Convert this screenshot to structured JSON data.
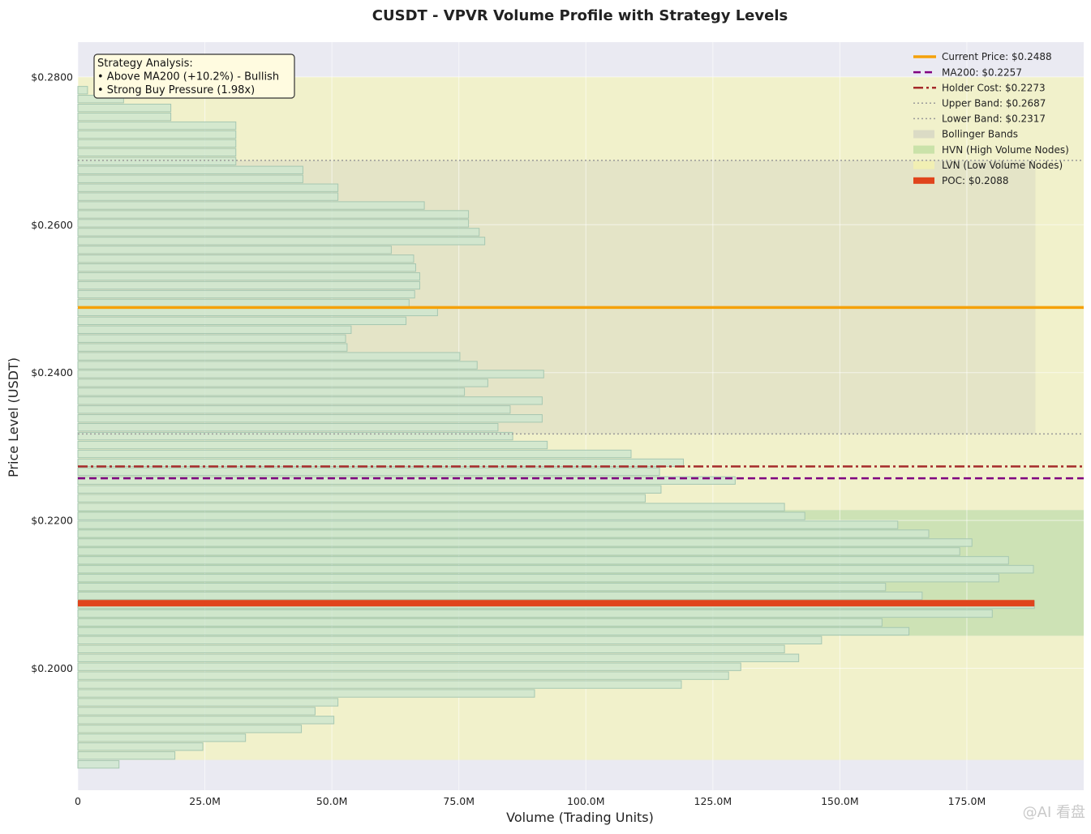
{
  "chart_data": {
    "type": "bar",
    "orientation": "horizontal",
    "title": "CUSDT - VPVR Volume Profile with Strategy Levels",
    "xlabel": "Volume (Trading Units)",
    "ylabel": "Price Level (USDT)",
    "xlim": [
      0,
      198000000
    ],
    "ylim": [
      0.1835,
      0.2847
    ],
    "x_ticks": [
      {
        "value": 0,
        "label": "0"
      },
      {
        "value": 25000000,
        "label": "25.0M"
      },
      {
        "value": 50000000,
        "label": "50.0M"
      },
      {
        "value": 75000000,
        "label": "75.0M"
      },
      {
        "value": 100000000,
        "label": "100.0M"
      },
      {
        "value": 125000000,
        "label": "125.0M"
      },
      {
        "value": 150000000,
        "label": "150.0M"
      },
      {
        "value": 175000000,
        "label": "175.0M"
      }
    ],
    "y_ticks": [
      {
        "value": 0.28,
        "label": "$0.2800"
      },
      {
        "value": 0.26,
        "label": "$0.2600"
      },
      {
        "value": 0.24,
        "label": "$0.2400"
      },
      {
        "value": 0.22,
        "label": "$0.2200"
      },
      {
        "value": 0.2,
        "label": "$0.2000"
      }
    ],
    "grid": true,
    "legend_position": "top-right",
    "bin_height": 0.0012,
    "bins": [
      {
        "price": 0.2794,
        "volume": 0
      },
      {
        "price": 0.2782,
        "volume": 1900000
      },
      {
        "price": 0.277,
        "volume": 9000000
      },
      {
        "price": 0.2758,
        "volume": 18300000
      },
      {
        "price": 0.2746,
        "volume": 18300000
      },
      {
        "price": 0.2734,
        "volume": 31100000
      },
      {
        "price": 0.2722,
        "volume": 31100000
      },
      {
        "price": 0.271,
        "volume": 31100000
      },
      {
        "price": 0.2698,
        "volume": 31100000
      },
      {
        "price": 0.2686,
        "volume": 31100000
      },
      {
        "price": 0.2674,
        "volume": 44300000
      },
      {
        "price": 0.2662,
        "volume": 44300000
      },
      {
        "price": 0.265,
        "volume": 51200000
      },
      {
        "price": 0.2638,
        "volume": 51200000
      },
      {
        "price": 0.2626,
        "volume": 68200000
      },
      {
        "price": 0.2614,
        "volume": 76900000
      },
      {
        "price": 0.2602,
        "volume": 76900000
      },
      {
        "price": 0.259,
        "volume": 79000000
      },
      {
        "price": 0.2578,
        "volume": 80100000
      },
      {
        "price": 0.2566,
        "volume": 61700000
      },
      {
        "price": 0.2554,
        "volume": 66100000
      },
      {
        "price": 0.2542,
        "volume": 66500000
      },
      {
        "price": 0.253,
        "volume": 67300000
      },
      {
        "price": 0.2518,
        "volume": 67300000
      },
      {
        "price": 0.2506,
        "volume": 66300000
      },
      {
        "price": 0.2494,
        "volume": 65200000
      },
      {
        "price": 0.2482,
        "volume": 70800000
      },
      {
        "price": 0.247,
        "volume": 64600000
      },
      {
        "price": 0.2458,
        "volume": 53800000
      },
      {
        "price": 0.2446,
        "volume": 52700000
      },
      {
        "price": 0.2434,
        "volume": 53000000
      },
      {
        "price": 0.2422,
        "volume": 75200000
      },
      {
        "price": 0.241,
        "volume": 78600000
      },
      {
        "price": 0.2398,
        "volume": 91700000
      },
      {
        "price": 0.2386,
        "volume": 80700000
      },
      {
        "price": 0.2374,
        "volume": 76100000
      },
      {
        "price": 0.2362,
        "volume": 91400000
      },
      {
        "price": 0.235,
        "volume": 85100000
      },
      {
        "price": 0.2338,
        "volume": 91400000
      },
      {
        "price": 0.2326,
        "volume": 82700000
      },
      {
        "price": 0.2314,
        "volume": 85600000
      },
      {
        "price": 0.2302,
        "volume": 92400000
      },
      {
        "price": 0.229,
        "volume": 108900000
      },
      {
        "price": 0.2278,
        "volume": 119200000
      },
      {
        "price": 0.2266,
        "volume": 114500000
      },
      {
        "price": 0.2254,
        "volume": 129400000
      },
      {
        "price": 0.2242,
        "volume": 114800000
      },
      {
        "price": 0.223,
        "volume": 111700000
      },
      {
        "price": 0.2218,
        "volume": 139100000
      },
      {
        "price": 0.2206,
        "volume": 143100000
      },
      {
        "price": 0.2194,
        "volume": 161400000
      },
      {
        "price": 0.2182,
        "volume": 167500000
      },
      {
        "price": 0.217,
        "volume": 176000000
      },
      {
        "price": 0.2158,
        "volume": 173600000
      },
      {
        "price": 0.2146,
        "volume": 183200000
      },
      {
        "price": 0.2134,
        "volume": 188100000
      },
      {
        "price": 0.2122,
        "volume": 181300000
      },
      {
        "price": 0.211,
        "volume": 159000000
      },
      {
        "price": 0.2098,
        "volume": 166200000
      },
      {
        "price": 0.2086,
        "volume": 188300000
      },
      {
        "price": 0.2074,
        "volume": 180000000
      },
      {
        "price": 0.2062,
        "volume": 158300000
      },
      {
        "price": 0.205,
        "volume": 163600000
      },
      {
        "price": 0.2038,
        "volume": 146400000
      },
      {
        "price": 0.2026,
        "volume": 139100000
      },
      {
        "price": 0.2014,
        "volume": 141900000
      },
      {
        "price": 0.2002,
        "volume": 130500000
      },
      {
        "price": 0.199,
        "volume": 128100000
      },
      {
        "price": 0.1978,
        "volume": 118800000
      },
      {
        "price": 0.1966,
        "volume": 89900000
      },
      {
        "price": 0.1954,
        "volume": 51200000
      },
      {
        "price": 0.1942,
        "volume": 46700000
      },
      {
        "price": 0.193,
        "volume": 50400000
      },
      {
        "price": 0.1918,
        "volume": 44000000
      },
      {
        "price": 0.1906,
        "volume": 33000000
      },
      {
        "price": 0.1894,
        "volume": 24600000
      },
      {
        "price": 0.1882,
        "volume": 19100000
      },
      {
        "price": 0.187,
        "volume": 8100000
      }
    ],
    "lines": [
      {
        "name": "Current Price: $0.2488",
        "price": 0.2488,
        "color": "#f5a10a",
        "style": "solid"
      },
      {
        "name": "MA200: $0.2257",
        "price": 0.2257,
        "color": "#800080",
        "style": "dashed"
      },
      {
        "name": "Holder Cost: $0.2273",
        "price": 0.2273,
        "color": "#a52a2a",
        "style": "dashdot"
      },
      {
        "name": "Upper Band: $0.2687",
        "price": 0.2687,
        "color": "#9a9a9a",
        "style": "dotted"
      },
      {
        "name": "Lower Band: $0.2317",
        "price": 0.2317,
        "color": "#9a9a9a",
        "style": "dotted"
      }
    ],
    "bands": [
      {
        "name": "Bollinger Bands",
        "from": 0.2317,
        "to": 0.2687,
        "xmax": 188500000,
        "color": "#d8d8c4"
      },
      {
        "name": "HVN (High Volume Nodes)",
        "from": 0.2044,
        "to": 0.2214,
        "color": "#c5e0a5"
      },
      {
        "name": "LVN (Low Volume Nodes)",
        "ranges": [
          [
            0.1876,
            0.2044
          ],
          [
            0.2214,
            0.28
          ]
        ],
        "color": "#f2f2c4"
      }
    ],
    "poc": {
      "name": "POC: $0.2088",
      "price": 0.2088,
      "volume": 188300000,
      "color": "#e0441c"
    },
    "annotation": {
      "lines": [
        "Strategy Analysis:",
        "• Above MA200 (+10.2%) - Bullish",
        "• Strong Buy Pressure (1.98x)"
      ]
    }
  },
  "watermark": "@AI 看盘",
  "colors": {
    "plot_bg": "#eaeaf2",
    "bar_fill": "#cfe6cf",
    "bar_stroke": "#a6c7b1"
  }
}
